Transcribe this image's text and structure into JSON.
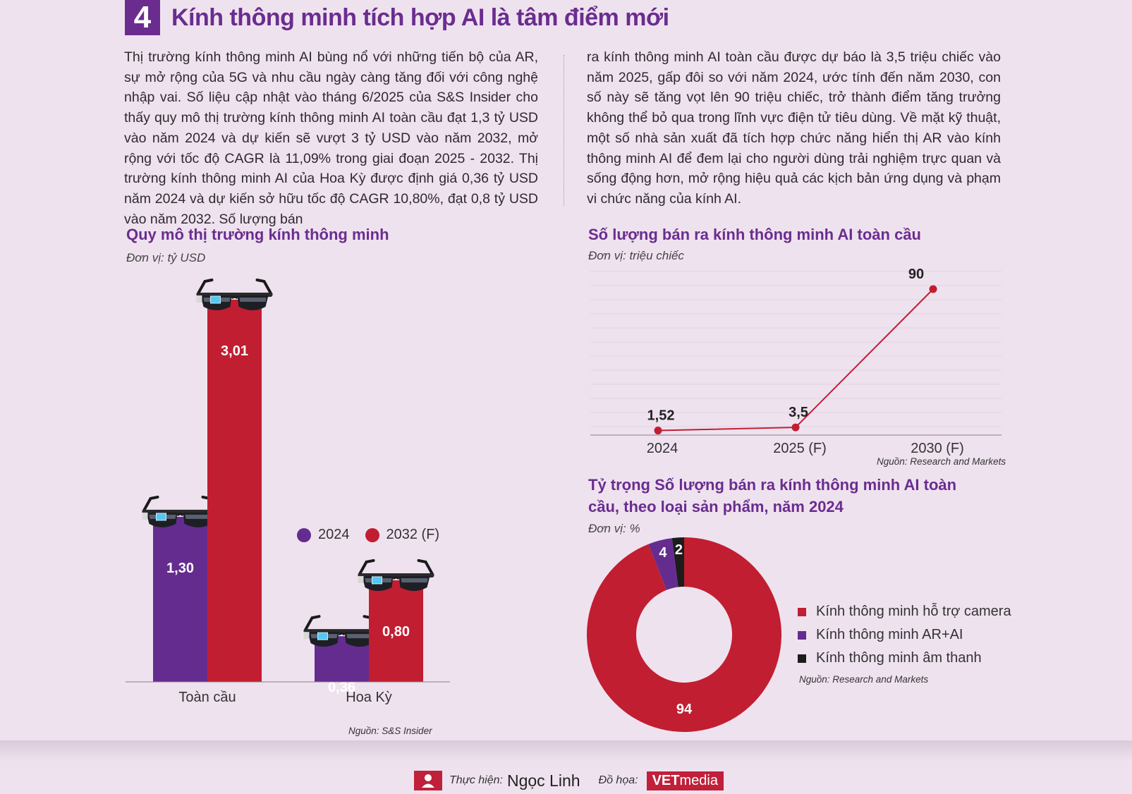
{
  "header": {
    "number": "4",
    "title": "Kính thông minh tích hợp AI là tâm điểm mới"
  },
  "article": {
    "col1": "Thị trường kính thông minh AI bùng nổ với những tiến bộ của AR, sự mở rộng của 5G và nhu cầu ngày càng tăng đối với công nghệ nhập vai. Số liệu cập nhật vào tháng 6/2025 của S&S Insider cho thấy quy mô thị trường kính thông minh AI toàn cầu đạt 1,3 tỷ USD vào năm 2024 và dự kiến sẽ vượt 3 tỷ USD vào năm 2032, mở rộng với tốc độ CAGR là 11,09% trong giai đoạn 2025 - 2032. Thị trường kính thông minh AI của Hoa Kỳ được định giá 0,36 tỷ USD năm 2024 và dự kiến sở hữu tốc độ CAGR 10,80%, đạt 0,8 tỷ USD vào năm 2032. Số lượng bán",
    "col2": "ra kính thông minh AI toàn cầu được dự báo là 3,5 triệu chiếc vào năm 2025, gấp đôi so với năm 2024, ước tính đến năm 2030, con số này sẽ tăng vọt lên 90 triệu chiếc, trở thành điểm tăng trưởng không thể bỏ qua trong lĩnh vực điện tử tiêu dùng. Về mặt kỹ thuật, một số nhà sản xuất đã tích hợp chức năng hiển thị AR vào kính thông minh AI để đem lại cho người dùng trải nghiệm trực quan và sống động hơn, mở rộng hiệu quả các kịch bản ứng dụng và phạm vi chức năng của kính AI."
  },
  "chart_data": [
    {
      "type": "bar",
      "title": "Quy mô thị trường kính thông minh",
      "unit": "Đơn vị: tỷ USD",
      "categories": [
        "Toàn cầu",
        "Hoa Kỳ"
      ],
      "series": [
        {
          "name": "2024",
          "values": [
            1.3,
            0.36
          ],
          "labels": [
            "1,30",
            "0,36"
          ],
          "color": "#652c8f"
        },
        {
          "name": "2032 (F)",
          "values": [
            3.01,
            0.8
          ],
          "labels": [
            "3,01",
            "0,80"
          ],
          "color": "#c11e31"
        }
      ],
      "ylim": [
        0,
        3.5
      ],
      "legend": "right",
      "source": "Nguồn: S&S Insider"
    },
    {
      "type": "line",
      "title": "Số lượng bán ra kính thông minh AI toàn cầu",
      "unit": "Đơn vị: triệu chiếc",
      "categories": [
        "2024",
        "2025 (F)",
        "2030 (F)"
      ],
      "series": [
        {
          "values": [
            1.52,
            3.5,
            90
          ],
          "labels": [
            "1,52",
            "3,5",
            "90"
          ],
          "color": "#c11e31"
        }
      ],
      "ylim": [
        0,
        100
      ],
      "grid": true,
      "source": "Nguồn: Research and Markets"
    },
    {
      "type": "pie",
      "title": "Tỷ trọng Số lượng bán ra kính thông minh AI toàn cầu, theo loại sản phẩm, năm 2024",
      "unit": "Đơn vị: %",
      "slices": [
        {
          "name": "Kính thông minh hỗ trợ camera",
          "value": 94,
          "label": "94",
          "color": "#c11e31"
        },
        {
          "name": "Kính thông minh AR+AI",
          "value": 4,
          "label": "4",
          "color": "#652c8f"
        },
        {
          "name": "Kính thông minh âm thanh",
          "value": 2,
          "label": "2",
          "color": "#1c1c1c"
        }
      ],
      "donut": true,
      "legend": "right",
      "source": "Nguồn: Research and Markets"
    }
  ],
  "footer": {
    "author_label": "Thực hiện:",
    "author": "Ngọc Linh",
    "design_label": "Đồ họa:",
    "brand_bold": "VET",
    "brand_light": "media"
  }
}
